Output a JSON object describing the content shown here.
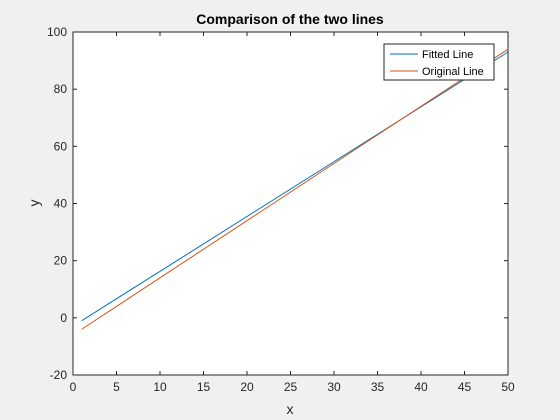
{
  "chart_data": {
    "type": "line",
    "title": "Comparison of the two lines",
    "xlabel": "x",
    "ylabel": "y",
    "xlim": [
      0,
      50
    ],
    "ylim": [
      -20,
      100
    ],
    "xticks": [
      0,
      5,
      10,
      15,
      20,
      25,
      30,
      35,
      40,
      45,
      50
    ],
    "yticks": [
      -20,
      0,
      20,
      40,
      60,
      80,
      100
    ],
    "grid": false,
    "legend_position": "top-right",
    "series": [
      {
        "name": "Fitted Line",
        "color": "#0072bd",
        "x": [
          1,
          50
        ],
        "y": [
          -1,
          93
        ]
      },
      {
        "name": "Original Line",
        "color": "#d95319",
        "x": [
          1,
          50
        ],
        "y": [
          -4,
          94
        ]
      }
    ]
  }
}
